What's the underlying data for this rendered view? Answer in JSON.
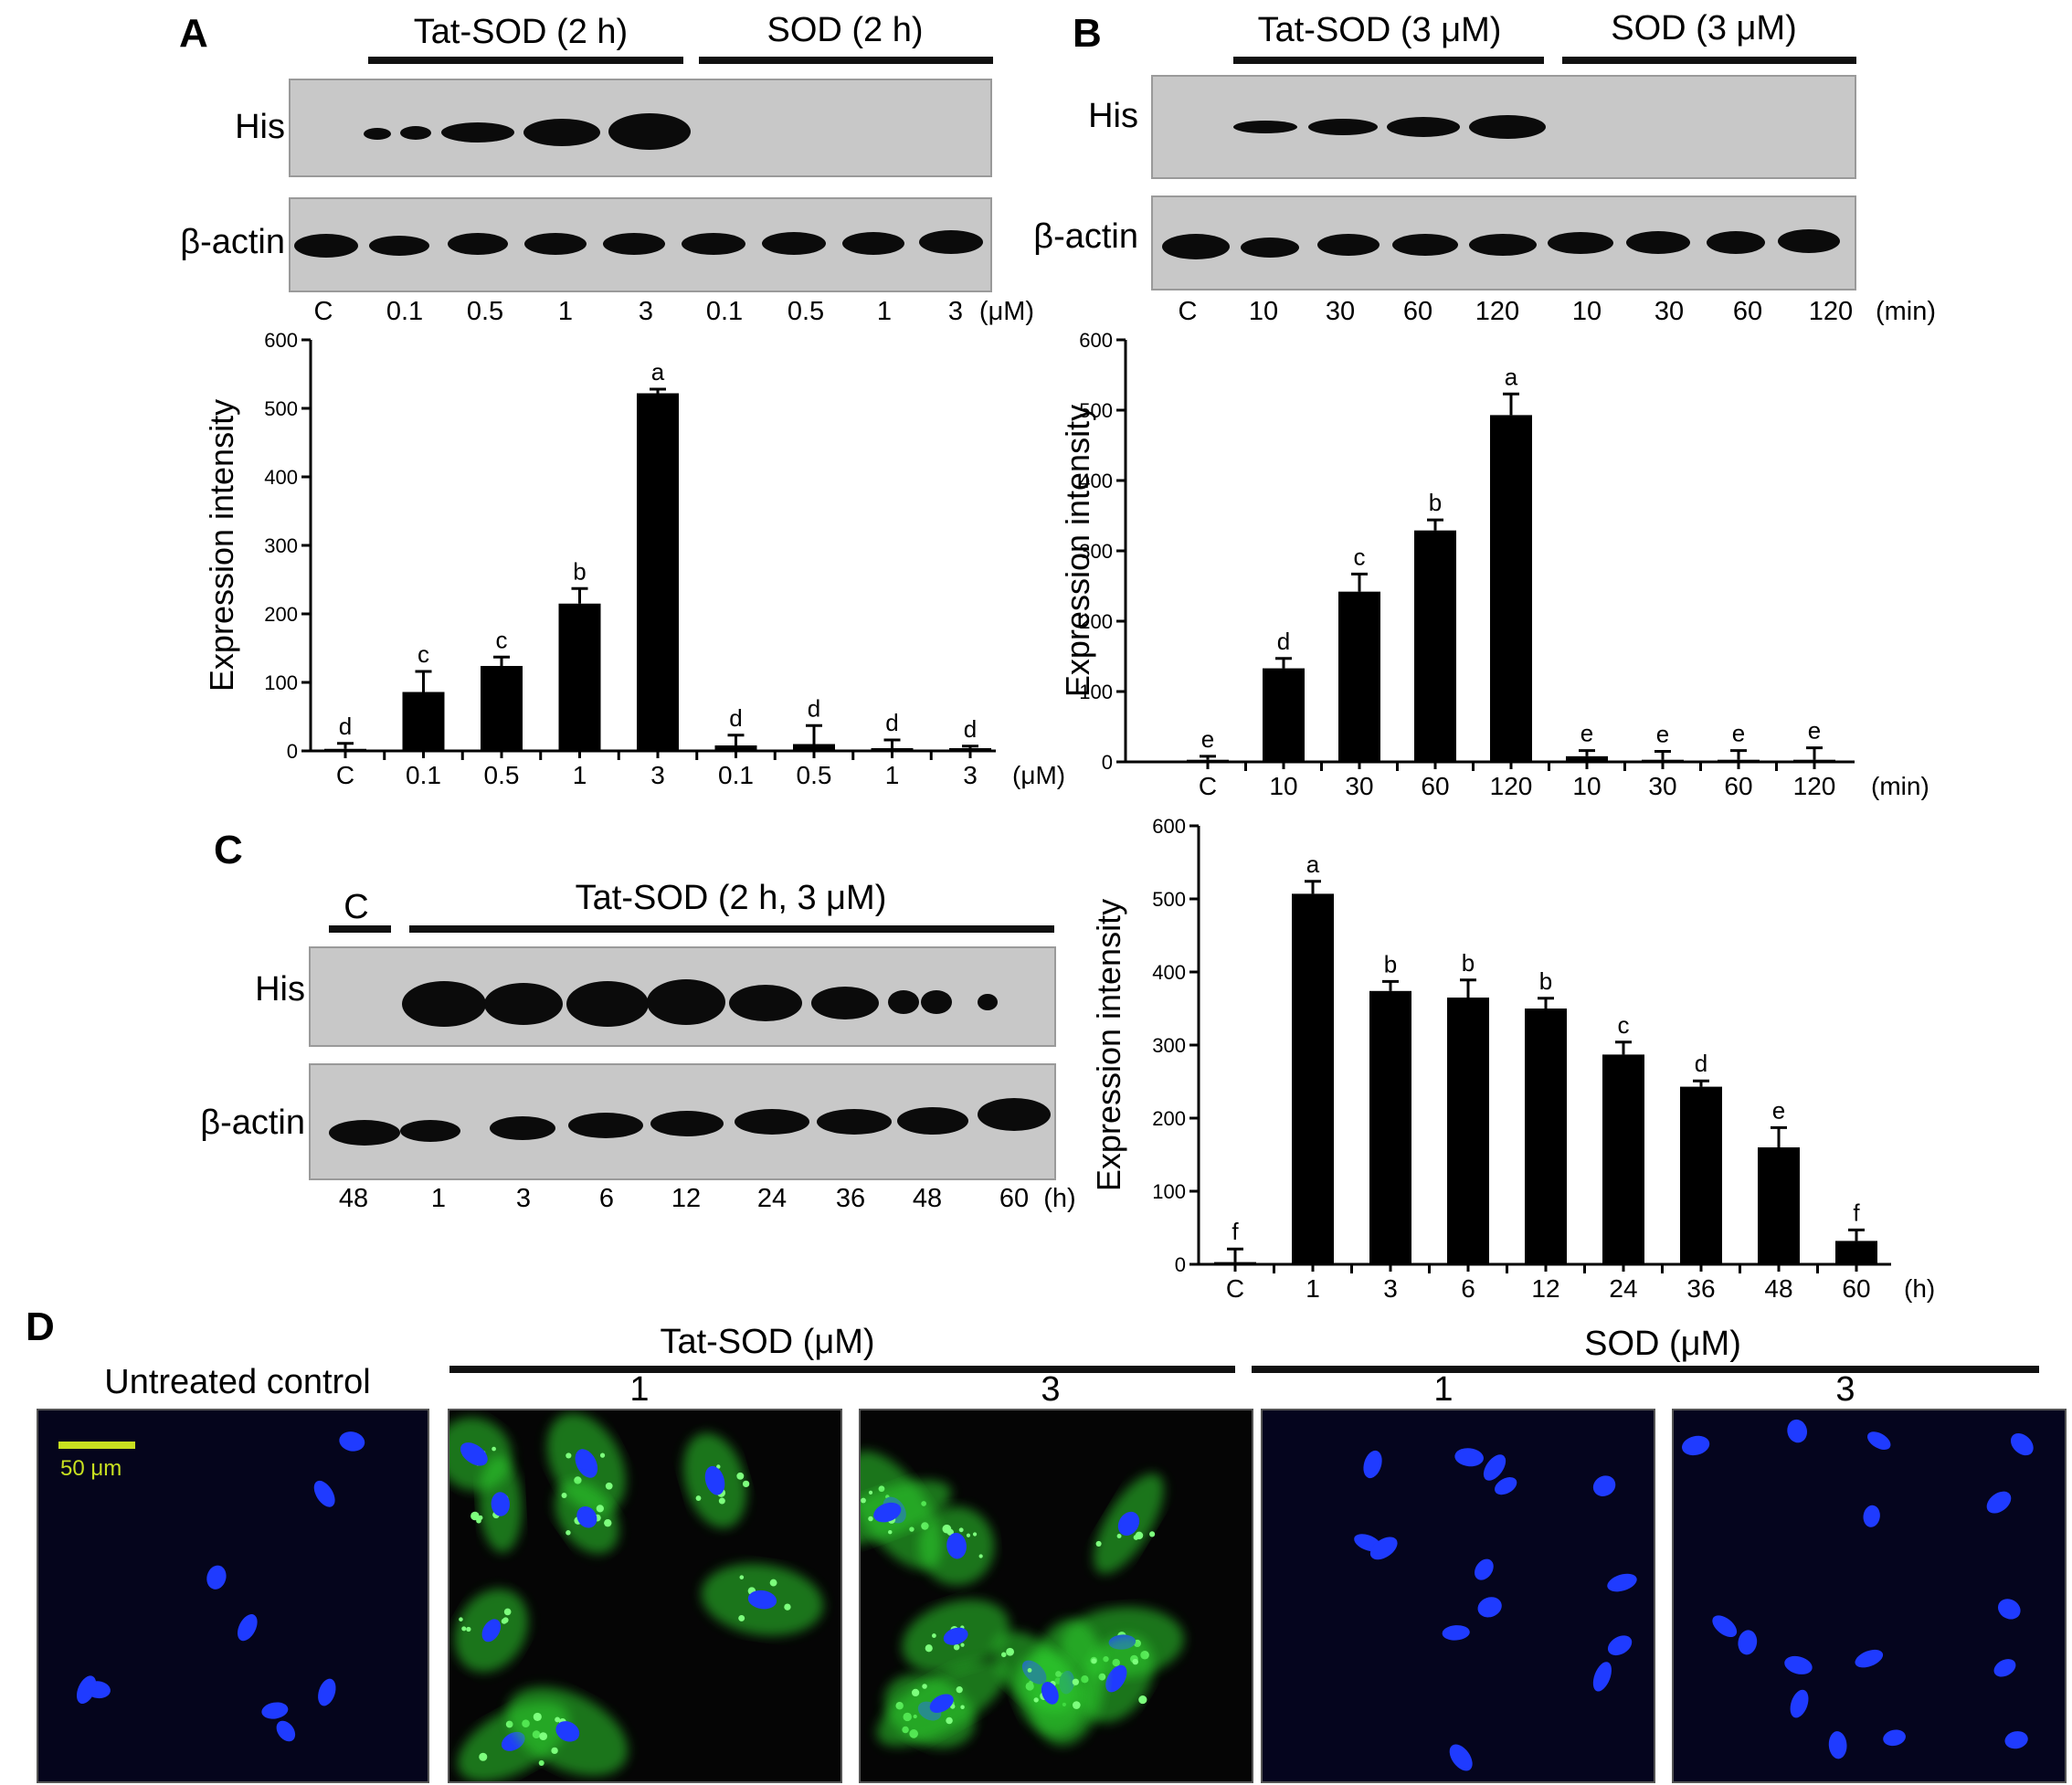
{
  "panels": {
    "A": {
      "letter": "A",
      "groups": [
        "Tat-SOD (2 h)",
        "SOD (2 h)"
      ],
      "blot_labels": [
        "His",
        "β-actin"
      ],
      "lanes": [
        "C",
        "0.1",
        "0.5",
        "1",
        "3",
        "0.1",
        "0.5",
        "1",
        "3"
      ],
      "unit": "(μM)"
    },
    "B": {
      "letter": "B",
      "groups": [
        "Tat-SOD (3 μM)",
        "SOD (3 μM)"
      ],
      "blot_labels": [
        "His",
        "β-actin"
      ],
      "lanes": [
        "C",
        "10",
        "30",
        "60",
        "120",
        "10",
        "30",
        "60",
        "120"
      ],
      "unit": "(min)"
    },
    "C": {
      "letter": "C",
      "groups": [
        "C",
        "Tat-SOD (2 h, 3 μM)"
      ],
      "blot_labels": [
        "His",
        "β-actin"
      ],
      "lanes": [
        "48",
        "1",
        "3",
        "6",
        "12",
        "24",
        "36",
        "48",
        "60"
      ],
      "unit": "(h)"
    },
    "D": {
      "letter": "D",
      "groups": [
        "Tat-SOD (μM)",
        "SOD (μM)"
      ],
      "image_labels": [
        "Untreated control",
        "1",
        "3",
        "1",
        "3"
      ],
      "scale_bar": "50 μm"
    }
  },
  "colors": {
    "bar": "#000000",
    "nucleus": "#1f3bff",
    "cytoplasm": "#2fd12f",
    "scale_bar": "#c8e020",
    "blot_bg": "#c8c8c8"
  },
  "chart_data": [
    {
      "type": "bar",
      "panel": "A",
      "categories": [
        "C",
        "0.1",
        "0.5",
        "1",
        "3",
        "0.1",
        "0.5",
        "1",
        "3"
      ],
      "values": [
        3,
        86,
        124,
        215,
        522,
        8,
        10,
        4,
        4
      ],
      "errors": [
        8,
        30,
        13,
        22,
        6,
        15,
        27,
        12,
        3
      ],
      "significance": [
        "d",
        "c",
        "c",
        "b",
        "a",
        "d",
        "d",
        "d",
        "d"
      ],
      "ylabel": "Expression intensity",
      "xunit": "(μM)",
      "ylim": [
        0,
        600
      ],
      "yticks": [
        0,
        100,
        200,
        300,
        400,
        500,
        600
      ]
    },
    {
      "type": "bar",
      "panel": "B",
      "categories": [
        "C",
        "10",
        "30",
        "60",
        "120",
        "10",
        "30",
        "60",
        "120"
      ],
      "values": [
        3,
        133,
        242,
        329,
        493,
        8,
        3,
        3,
        3
      ],
      "errors": [
        5,
        14,
        25,
        15,
        30,
        8,
        12,
        13,
        17
      ],
      "significance": [
        "e",
        "d",
        "c",
        "b",
        "a",
        "e",
        "e",
        "e",
        "e"
      ],
      "ylabel": "Expression intensity",
      "xunit": "(min)",
      "ylim": [
        0,
        600
      ],
      "yticks": [
        0,
        100,
        200,
        300,
        400,
        500,
        600
      ]
    },
    {
      "type": "bar",
      "panel": "C",
      "categories": [
        "C",
        "1",
        "3",
        "6",
        "12",
        "24",
        "36",
        "48",
        "60"
      ],
      "values": [
        3,
        507,
        374,
        365,
        350,
        287,
        243,
        160,
        32
      ],
      "errors": [
        18,
        17,
        13,
        24,
        14,
        17,
        8,
        27,
        15
      ],
      "significance": [
        "f",
        "a",
        "b",
        "b",
        "b",
        "c",
        "d",
        "e",
        "f"
      ],
      "ylabel": "Expression intensity",
      "xunit": "(h)",
      "ylim": [
        0,
        600
      ],
      "yticks": [
        0,
        100,
        200,
        300,
        400,
        500,
        600
      ]
    }
  ]
}
